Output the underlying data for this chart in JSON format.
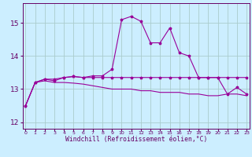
{
  "xlabel": "Windchill (Refroidissement éolien,°C)",
  "background_color": "#cceeff",
  "grid_color": "#aacccc",
  "line_color": "#990099",
  "hours": [
    0,
    1,
    2,
    3,
    4,
    5,
    6,
    7,
    8,
    9,
    10,
    11,
    12,
    13,
    14,
    15,
    16,
    17,
    18,
    19,
    20,
    21,
    22,
    23
  ],
  "line1": [
    12.5,
    13.2,
    13.3,
    13.3,
    13.35,
    13.38,
    13.35,
    13.35,
    13.35,
    13.35,
    13.35,
    13.35,
    13.35,
    13.35,
    13.35,
    13.35,
    13.35,
    13.35,
    13.35,
    13.35,
    13.35,
    13.35,
    13.35,
    13.35
  ],
  "line2": [
    12.5,
    13.2,
    13.25,
    13.2,
    13.2,
    13.18,
    13.15,
    13.1,
    13.05,
    13.0,
    13.0,
    13.0,
    12.95,
    12.95,
    12.9,
    12.9,
    12.9,
    12.85,
    12.85,
    12.8,
    12.8,
    12.85,
    12.85,
    12.8
  ],
  "line3": [
    12.5,
    13.2,
    13.3,
    13.25,
    13.35,
    13.38,
    13.35,
    13.4,
    13.4,
    13.6,
    15.1,
    15.2,
    15.05,
    14.4,
    14.4,
    14.85,
    14.1,
    14.0,
    13.35,
    13.35,
    13.35,
    12.85,
    13.05,
    12.85
  ],
  "ylim": [
    11.8,
    15.6
  ],
  "yticks": [
    12,
    13,
    14,
    15
  ],
  "xtick_fontsize": 4.5,
  "ytick_fontsize": 6.5,
  "xlabel_fontsize": 5.8
}
